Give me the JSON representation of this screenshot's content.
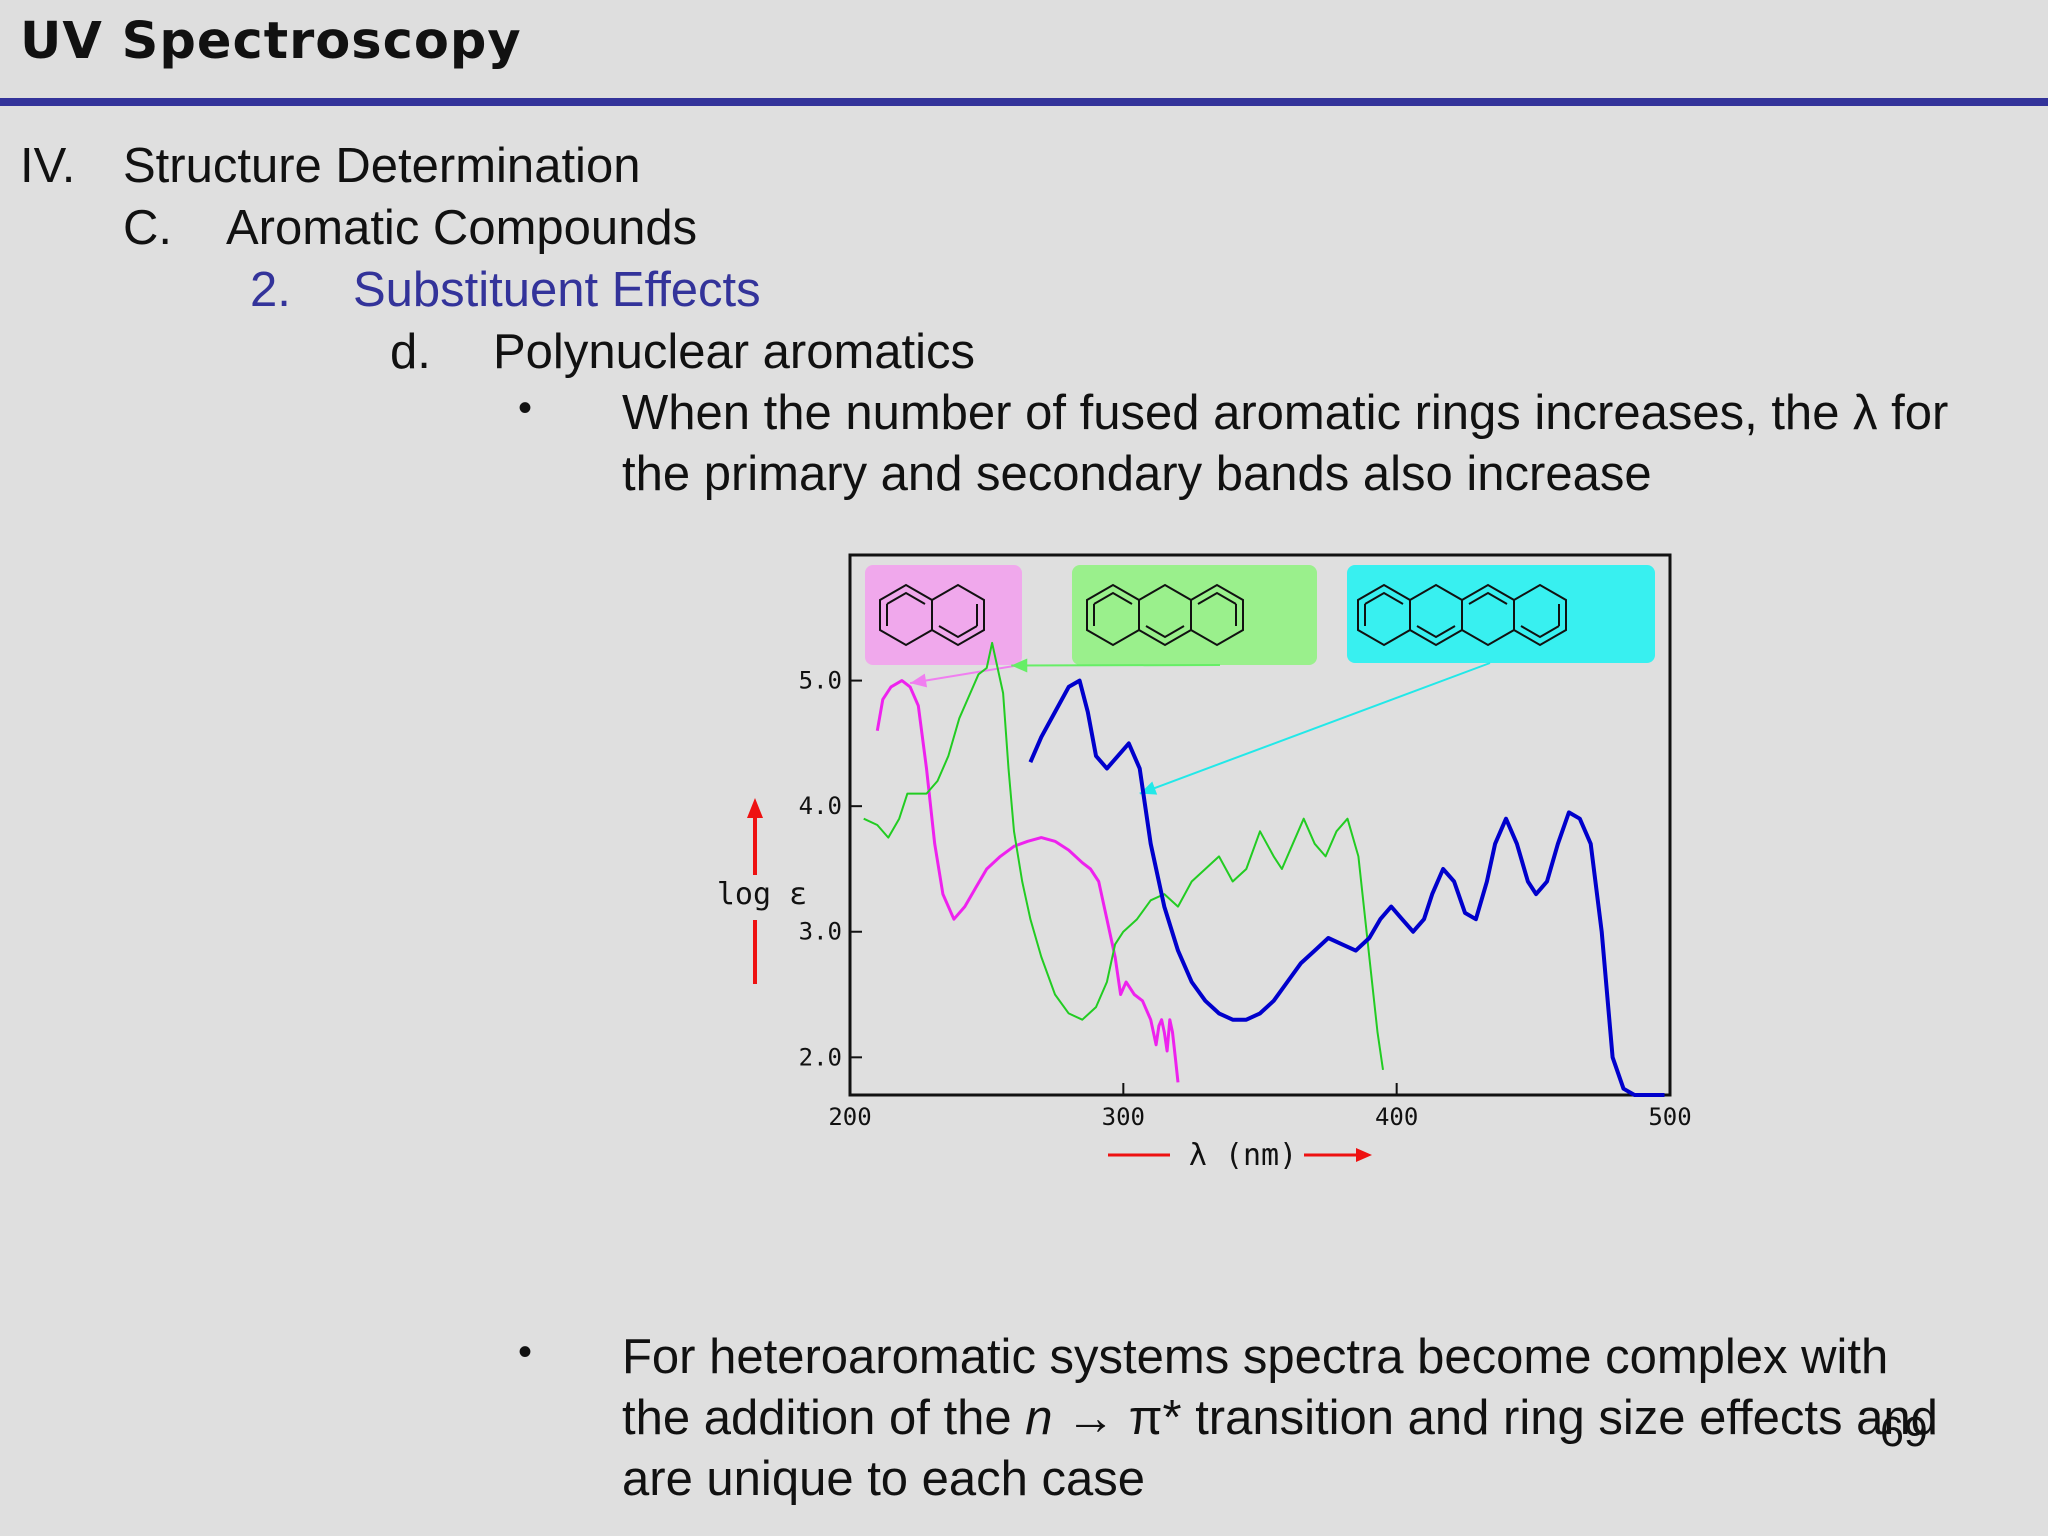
{
  "header": {
    "title": "UV Spectroscopy",
    "accent_color": "#33339a"
  },
  "outline": {
    "l1": {
      "num": "IV.",
      "text": "Structure Determination"
    },
    "l2": {
      "num": "C.",
      "text": "Aromatic Compounds"
    },
    "l3": {
      "num": "2.",
      "text": "Substituent Effects"
    },
    "l4": {
      "num": "d.",
      "text": "Polynuclear aromatics"
    }
  },
  "bullets": [
    {
      "marker": "•",
      "line1": "When the number of fused aromatic rings increases, the λ for",
      "line2": "the primary and secondary bands also increase"
    },
    {
      "marker": "•",
      "line1": "For heteroaromatic systems spectra become complex with",
      "line2_pre": "the addition of the ",
      "line2_n": "n",
      "line2_arrow": "→",
      "line2_post": " π* transition and ring size effects and",
      "line3": "are unique to each case"
    }
  ],
  "page_number": "69",
  "chart_data": {
    "type": "line",
    "xlabel": "λ (nm)",
    "ylabel": "log ε",
    "xlim": [
      200,
      500
    ],
    "ylim": [
      1.7,
      6.0
    ],
    "x_ticks": [
      200,
      300,
      400,
      500
    ],
    "y_ticks": [
      2.0,
      3.0,
      4.0,
      5.0
    ],
    "x_tick_labels": [
      "200",
      "300",
      "400",
      "500"
    ],
    "y_tick_labels": [
      "2.0",
      "3.0",
      "4.0",
      "5.0"
    ],
    "molecule_boxes": [
      {
        "color": "#f0a8ec"
      },
      {
        "color": "#9af08c"
      },
      {
        "color": "#38f0f0"
      }
    ],
    "series": [
      {
        "color": "#ee22ee",
        "stroke": 3,
        "x": [
          210,
          212,
          215,
          219,
          222,
          225,
          228,
          231,
          234,
          238,
          242,
          246,
          250,
          255,
          260,
          265,
          270,
          275,
          280,
          285,
          288,
          291,
          294,
          297,
          299,
          301,
          304,
          307,
          310,
          311,
          312,
          313,
          314,
          315,
          316,
          317,
          318,
          319,
          320
        ],
        "y": [
          4.6,
          4.85,
          4.95,
          5.0,
          4.95,
          4.8,
          4.3,
          3.7,
          3.3,
          3.1,
          3.2,
          3.35,
          3.5,
          3.6,
          3.68,
          3.72,
          3.75,
          3.72,
          3.65,
          3.55,
          3.5,
          3.4,
          3.1,
          2.8,
          2.5,
          2.6,
          2.5,
          2.45,
          2.3,
          2.2,
          2.1,
          2.25,
          2.3,
          2.2,
          2.05,
          2.3,
          2.2,
          2.0,
          1.8
        ]
      },
      {
        "color": "#22cc22",
        "stroke": 2,
        "x": [
          205,
          210,
          214,
          218,
          221,
          224,
          228,
          232,
          236,
          240,
          244,
          247,
          250,
          252,
          254,
          256,
          258,
          260,
          263,
          266,
          270,
          275,
          280,
          285,
          290,
          294,
          297,
          300,
          305,
          310,
          315,
          320,
          325,
          330,
          335,
          340,
          345,
          350,
          355,
          358,
          362,
          366,
          370,
          374,
          378,
          382,
          386,
          390,
          393,
          395
        ],
        "y": [
          3.9,
          3.85,
          3.75,
          3.9,
          4.1,
          4.1,
          4.1,
          4.2,
          4.4,
          4.7,
          4.9,
          5.05,
          5.1,
          5.3,
          5.1,
          4.9,
          4.3,
          3.8,
          3.4,
          3.1,
          2.8,
          2.5,
          2.35,
          2.3,
          2.4,
          2.6,
          2.9,
          3.0,
          3.1,
          3.25,
          3.3,
          3.2,
          3.4,
          3.5,
          3.6,
          3.4,
          3.5,
          3.8,
          3.6,
          3.5,
          3.7,
          3.9,
          3.7,
          3.6,
          3.8,
          3.9,
          3.6,
          2.8,
          2.2,
          1.9
        ]
      },
      {
        "color": "#0000cc",
        "stroke": 4,
        "x": [
          266,
          270,
          275,
          280,
          284,
          287,
          290,
          294,
          298,
          302,
          306,
          310,
          315,
          320,
          325,
          330,
          335,
          340,
          345,
          350,
          355,
          360,
          365,
          370,
          375,
          380,
          385,
          390,
          394,
          398,
          402,
          406,
          410,
          413,
          417,
          421,
          425,
          429,
          433,
          436,
          440,
          444,
          448,
          451,
          455,
          459,
          463,
          467,
          471,
          475,
          479,
          483,
          487,
          491,
          494,
          496,
          498
        ],
        "y": [
          4.35,
          4.55,
          4.75,
          4.95,
          5.0,
          4.75,
          4.4,
          4.3,
          4.4,
          4.5,
          4.3,
          3.7,
          3.2,
          2.85,
          2.6,
          2.45,
          2.35,
          2.3,
          2.3,
          2.35,
          2.45,
          2.6,
          2.75,
          2.85,
          2.95,
          2.9,
          2.85,
          2.95,
          3.1,
          3.2,
          3.1,
          3.0,
          3.1,
          3.3,
          3.5,
          3.4,
          3.15,
          3.1,
          3.4,
          3.7,
          3.9,
          3.7,
          3.4,
          3.3,
          3.4,
          3.7,
          3.95,
          3.9,
          3.7,
          3.0,
          2.0,
          1.75,
          1.7,
          1.7,
          1.7,
          1.7,
          1.7
        ]
      }
    ],
    "pointers": [
      {
        "color": "#f07ef0",
        "to_x": 222,
        "to_y": 4.98
      },
      {
        "color": "#66ee66",
        "to_x": 259,
        "to_y": 5.12
      },
      {
        "color": "#22e8e8",
        "to_x": 306,
        "to_y": 4.1
      }
    ]
  }
}
